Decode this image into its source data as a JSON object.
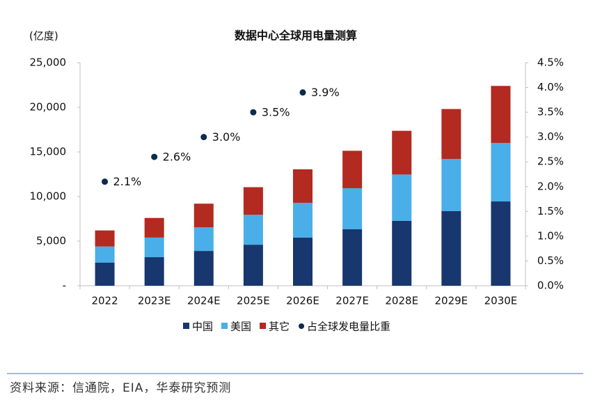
{
  "chart_data": {
    "type": "bar",
    "stacked": true,
    "title": "数据中心全球用电量测算",
    "y_label": "(亿度)",
    "categories": [
      "2022",
      "2023E",
      "2024E",
      "2025E",
      "2026E",
      "2027E",
      "2028E",
      "2029E",
      "2030E"
    ],
    "series": [
      {
        "name": "中国",
        "color": "#17376e",
        "values": [
          2600,
          3200,
          3900,
          4600,
          5400,
          6330,
          7270,
          8360,
          9450
        ]
      },
      {
        "name": "美国",
        "color": "#4aaee8",
        "values": [
          1800,
          2200,
          2650,
          3350,
          3900,
          4600,
          5200,
          5850,
          6550
        ]
      },
      {
        "name": "其它",
        "color": "#b22a20",
        "values": [
          1800,
          2200,
          2650,
          3100,
          3750,
          4200,
          4900,
          5600,
          6400
        ]
      },
      {
        "name": "占全球发电量比重",
        "color": "#0d2a4f",
        "type": "scatter",
        "axis": "y2",
        "values": [
          2.1,
          2.6,
          3.0,
          3.5,
          3.9,
          null,
          null,
          null,
          null
        ],
        "value_labels": [
          "2.1%",
          "2.6%",
          "3.0%",
          "3.5%",
          "3.9%",
          null,
          null,
          null,
          null
        ]
      }
    ],
    "ylim": [
      0,
      25000
    ],
    "yticks": [
      {
        "value": 0,
        "label": "-"
      },
      {
        "value": 5000,
        "label": "5,000"
      },
      {
        "value": 10000,
        "label": "10,000"
      },
      {
        "value": 15000,
        "label": "15,000"
      },
      {
        "value": 20000,
        "label": "20,000"
      },
      {
        "value": 25000,
        "label": "25,000"
      }
    ],
    "y2lim": [
      0,
      4.5
    ],
    "y2ticks": [
      {
        "value": 0,
        "label": "0.0%"
      },
      {
        "value": 0.5,
        "label": "0.5%"
      },
      {
        "value": 1,
        "label": "1.0%"
      },
      {
        "value": 1.5,
        "label": "1.5%"
      },
      {
        "value": 2,
        "label": "2.0%"
      },
      {
        "value": 2.5,
        "label": "2.5%"
      },
      {
        "value": 3,
        "label": "3.0%"
      },
      {
        "value": 3.5,
        "label": "3.5%"
      },
      {
        "value": 4,
        "label": "4.0%"
      },
      {
        "value": 4.5,
        "label": "4.5%"
      }
    ],
    "grid": false,
    "legend": "bottom",
    "source": "资料来源：信通院，EIA，华泰研究预测"
  }
}
